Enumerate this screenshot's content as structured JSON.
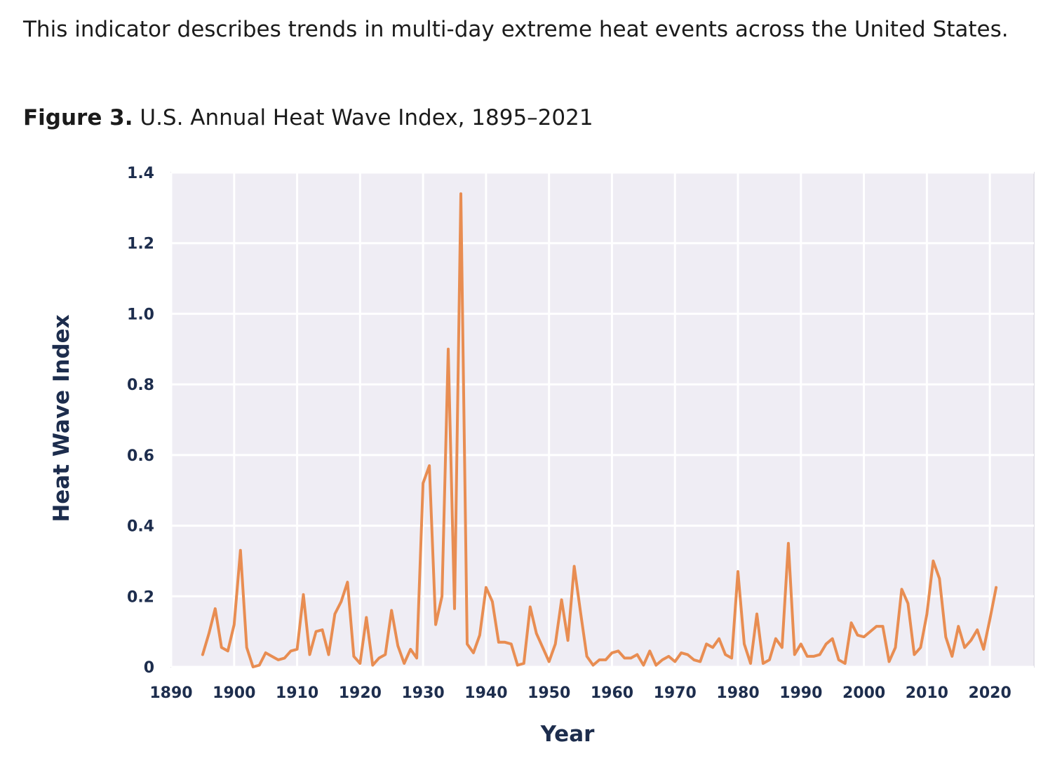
{
  "intro_text": "This indicator describes trends in multi-day extreme heat events across the United States.",
  "figure": {
    "label": "Figure 3.",
    "title": "U.S. Annual Heat Wave Index, 1895–2021"
  },
  "colors": {
    "plot_background": "#efedf4",
    "gridline": "#ffffff",
    "series_line": "#e88d52",
    "axis_text": "#1d2d4d"
  },
  "chart_data": {
    "type": "line",
    "xlabel": "Year",
    "ylabel": "Heat Wave Index",
    "xlim": [
      1890,
      2027
    ],
    "ylim": [
      0,
      1.4
    ],
    "x_ticks": [
      1890,
      1900,
      1910,
      1920,
      1930,
      1940,
      1950,
      1960,
      1970,
      1980,
      1990,
      2000,
      2010,
      2020
    ],
    "y_ticks": [
      0,
      0.2,
      0.4,
      0.6,
      0.8,
      1.0,
      1.2,
      1.4
    ],
    "y_tick_labels": [
      "0",
      "0.2",
      "0.4",
      "0.6",
      "0.8",
      "1.0",
      "1.2",
      "1.4"
    ],
    "grid": true,
    "series": [
      {
        "x": [
          1895,
          1896,
          1897,
          1898,
          1899,
          1900,
          1901,
          1902,
          1903,
          1904,
          1905,
          1906,
          1907,
          1908,
          1909,
          1910,
          1911,
          1912,
          1913,
          1914,
          1915,
          1916,
          1917,
          1918,
          1919,
          1920,
          1921,
          1922,
          1923,
          1924,
          1925,
          1926,
          1927,
          1928,
          1929,
          1930,
          1931,
          1932,
          1933,
          1934,
          1935,
          1936,
          1937,
          1938,
          1939,
          1940,
          1941,
          1942,
          1943,
          1944,
          1945,
          1946,
          1947,
          1948,
          1949,
          1950,
          1951,
          1952,
          1953,
          1954,
          1955,
          1956,
          1957,
          1958,
          1959,
          1960,
          1961,
          1962,
          1963,
          1964,
          1965,
          1966,
          1967,
          1968,
          1969,
          1970,
          1971,
          1972,
          1973,
          1974,
          1975,
          1976,
          1977,
          1978,
          1979,
          1980,
          1981,
          1982,
          1983,
          1984,
          1985,
          1986,
          1987,
          1988,
          1989,
          1990,
          1991,
          1992,
          1993,
          1994,
          1995,
          1996,
          1997,
          1998,
          1999,
          2000,
          2001,
          2002,
          2003,
          2004,
          2005,
          2006,
          2007,
          2008,
          2009,
          2010,
          2011,
          2012,
          2013,
          2014,
          2015,
          2016,
          2017,
          2018,
          2019,
          2020,
          2021
        ],
        "values": [
          0.035,
          0.095,
          0.165,
          0.055,
          0.045,
          0.12,
          0.33,
          0.055,
          0.0,
          0.005,
          0.04,
          0.03,
          0.02,
          0.025,
          0.045,
          0.05,
          0.205,
          0.035,
          0.1,
          0.105,
          0.035,
          0.15,
          0.185,
          0.24,
          0.03,
          0.01,
          0.14,
          0.005,
          0.025,
          0.035,
          0.16,
          0.06,
          0.01,
          0.05,
          0.025,
          0.52,
          0.57,
          0.12,
          0.2,
          0.9,
          0.165,
          1.34,
          0.065,
          0.04,
          0.09,
          0.225,
          0.185,
          0.07,
          0.07,
          0.065,
          0.005,
          0.01,
          0.17,
          0.095,
          0.055,
          0.015,
          0.065,
          0.19,
          0.075,
          0.285,
          0.155,
          0.03,
          0.005,
          0.02,
          0.02,
          0.04,
          0.045,
          0.025,
          0.025,
          0.035,
          0.005,
          0.045,
          0.005,
          0.02,
          0.03,
          0.015,
          0.04,
          0.035,
          0.02,
          0.015,
          0.065,
          0.055,
          0.08,
          0.035,
          0.025,
          0.27,
          0.065,
          0.01,
          0.15,
          0.01,
          0.02,
          0.08,
          0.055,
          0.35,
          0.035,
          0.065,
          0.03,
          0.03,
          0.035,
          0.065,
          0.08,
          0.02,
          0.01,
          0.125,
          0.09,
          0.085,
          0.1,
          0.115,
          0.115,
          0.015,
          0.055,
          0.22,
          0.18,
          0.035,
          0.055,
          0.15,
          0.3,
          0.25,
          0.085,
          0.03,
          0.115,
          0.055,
          0.075,
          0.105,
          0.05,
          0.135,
          0.225
        ]
      }
    ]
  }
}
